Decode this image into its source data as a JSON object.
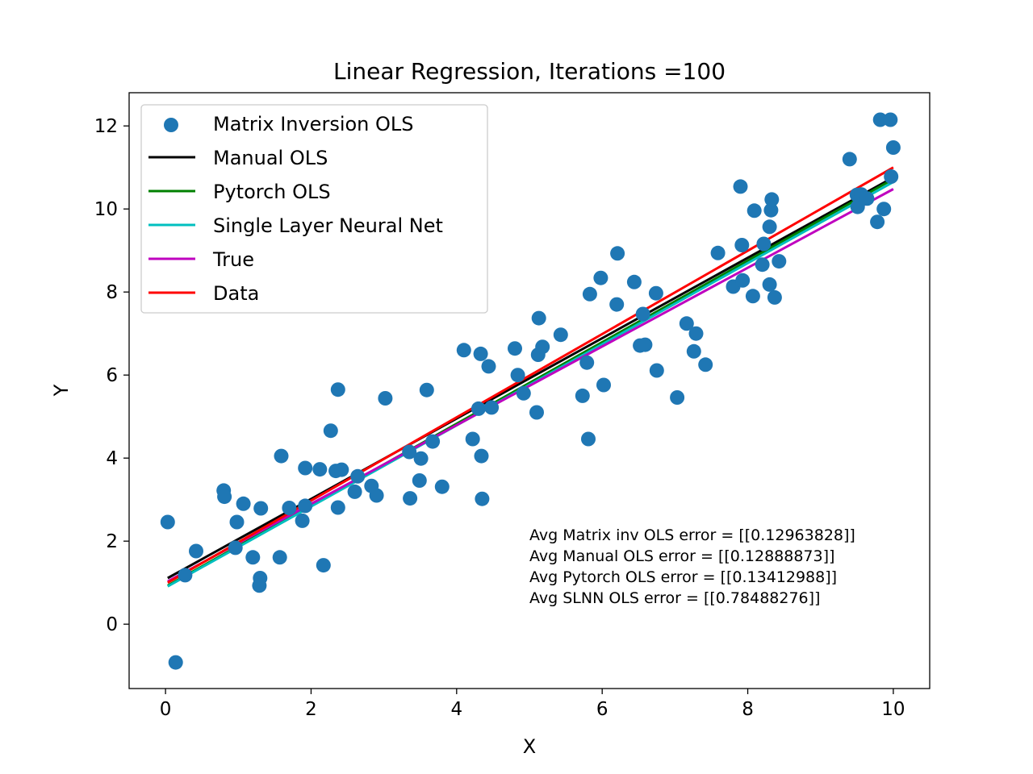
{
  "chart_data": {
    "type": "scatter",
    "title": "Linear Regression, Iterations =100",
    "xlabel": "X",
    "ylabel": "Y",
    "xlim": [
      -0.5,
      10.5
    ],
    "ylim": [
      -1.55,
      12.8
    ],
    "xticks": [
      0,
      2,
      4,
      6,
      8,
      10
    ],
    "yticks": [
      0,
      2,
      4,
      6,
      8,
      10,
      12
    ],
    "grid": false,
    "legend_position": "upper-left",
    "scatter": {
      "name": "Matrix Inversion OLS",
      "color": "#1f77b4",
      "points": [
        [
          0.03,
          2.46
        ],
        [
          0.14,
          -0.92
        ],
        [
          0.27,
          1.18
        ],
        [
          0.42,
          1.76
        ],
        [
          0.8,
          3.22
        ],
        [
          0.81,
          3.07
        ],
        [
          0.96,
          1.84
        ],
        [
          0.98,
          2.46
        ],
        [
          1.07,
          2.9
        ],
        [
          1.2,
          1.61
        ],
        [
          1.3,
          1.11
        ],
        [
          1.29,
          0.93
        ],
        [
          1.31,
          2.79
        ],
        [
          1.57,
          1.61
        ],
        [
          1.59,
          4.05
        ],
        [
          1.7,
          2.8
        ],
        [
          1.88,
          2.49
        ],
        [
          1.92,
          2.85
        ],
        [
          1.92,
          3.76
        ],
        [
          2.12,
          3.73
        ],
        [
          2.17,
          1.42
        ],
        [
          2.27,
          4.66
        ],
        [
          2.34,
          3.69
        ],
        [
          2.37,
          5.65
        ],
        [
          2.37,
          2.81
        ],
        [
          2.42,
          3.72
        ],
        [
          2.6,
          3.19
        ],
        [
          2.64,
          3.56
        ],
        [
          2.83,
          3.33
        ],
        [
          2.9,
          3.1
        ],
        [
          3.02,
          5.44
        ],
        [
          3.35,
          4.15
        ],
        [
          3.36,
          3.03
        ],
        [
          3.49,
          3.46
        ],
        [
          3.51,
          3.99
        ],
        [
          3.59,
          5.64
        ],
        [
          3.67,
          4.4
        ],
        [
          3.8,
          3.31
        ],
        [
          4.1,
          6.6
        ],
        [
          4.22,
          4.46
        ],
        [
          4.3,
          5.19
        ],
        [
          4.33,
          6.51
        ],
        [
          4.34,
          4.05
        ],
        [
          4.35,
          3.02
        ],
        [
          4.44,
          6.21
        ],
        [
          4.48,
          5.22
        ],
        [
          4.8,
          6.64
        ],
        [
          4.84,
          6.0
        ],
        [
          4.92,
          5.56
        ],
        [
          5.1,
          5.1
        ],
        [
          5.12,
          6.49
        ],
        [
          5.13,
          7.37
        ],
        [
          5.18,
          6.68
        ],
        [
          5.43,
          6.97
        ],
        [
          5.73,
          5.5
        ],
        [
          5.79,
          6.3
        ],
        [
          5.81,
          4.46
        ],
        [
          5.83,
          7.95
        ],
        [
          5.98,
          8.34
        ],
        [
          6.02,
          5.76
        ],
        [
          6.2,
          7.7
        ],
        [
          6.21,
          8.93
        ],
        [
          6.44,
          8.24
        ],
        [
          6.52,
          6.71
        ],
        [
          6.56,
          7.47
        ],
        [
          6.59,
          6.73
        ],
        [
          6.74,
          7.97
        ],
        [
          6.75,
          6.11
        ],
        [
          7.03,
          5.46
        ],
        [
          7.16,
          7.24
        ],
        [
          7.26,
          6.57
        ],
        [
          7.29,
          7.0
        ],
        [
          7.42,
          6.25
        ],
        [
          7.59,
          8.94
        ],
        [
          7.8,
          8.13
        ],
        [
          7.9,
          10.54
        ],
        [
          7.92,
          9.13
        ],
        [
          7.93,
          8.28
        ],
        [
          8.07,
          7.9
        ],
        [
          8.09,
          9.96
        ],
        [
          8.2,
          8.66
        ],
        [
          8.22,
          9.16
        ],
        [
          8.3,
          9.57
        ],
        [
          8.3,
          8.18
        ],
        [
          8.32,
          9.97
        ],
        [
          8.33,
          10.23
        ],
        [
          8.37,
          7.87
        ],
        [
          8.43,
          8.74
        ],
        [
          9.4,
          11.2
        ],
        [
          9.5,
          10.34
        ],
        [
          9.51,
          10.05
        ],
        [
          9.56,
          10.35
        ],
        [
          9.64,
          10.25
        ],
        [
          9.78,
          9.69
        ],
        [
          9.82,
          12.15
        ],
        [
          9.87,
          10.0
        ],
        [
          9.96,
          12.15
        ],
        [
          9.97,
          10.78
        ],
        [
          10.0,
          11.48
        ]
      ]
    },
    "series": [
      {
        "name": "Manual OLS",
        "color": "#000000",
        "x": [
          0.03,
          10.0
        ],
        "y": [
          1.11,
          10.76
        ]
      },
      {
        "name": "Pytorch OLS",
        "color": "#008000",
        "x": [
          0.03,
          10.0
        ],
        "y": [
          0.93,
          10.72
        ]
      },
      {
        "name": "Single Layer Neural Net",
        "color": "#00bfbf",
        "x": [
          0.03,
          10.0
        ],
        "y": [
          0.91,
          10.65
        ]
      },
      {
        "name": "True",
        "color": "#bf00bf",
        "x": [
          0.03,
          10.0
        ],
        "y": [
          1.03,
          10.48
        ]
      },
      {
        "name": "Data",
        "color": "#ff0000",
        "x": [
          0.03,
          10.0
        ],
        "y": [
          1.0,
          11.0
        ]
      }
    ],
    "annotations": [
      "Avg Matrix inv OLS error = [[0.12963828]]",
      "Avg Manual OLS error = [[0.12888873]]",
      "Avg Pytorch OLS error = [[0.13412988]]",
      "Avg SLNN OLS error = [[0.78488276]]"
    ]
  }
}
